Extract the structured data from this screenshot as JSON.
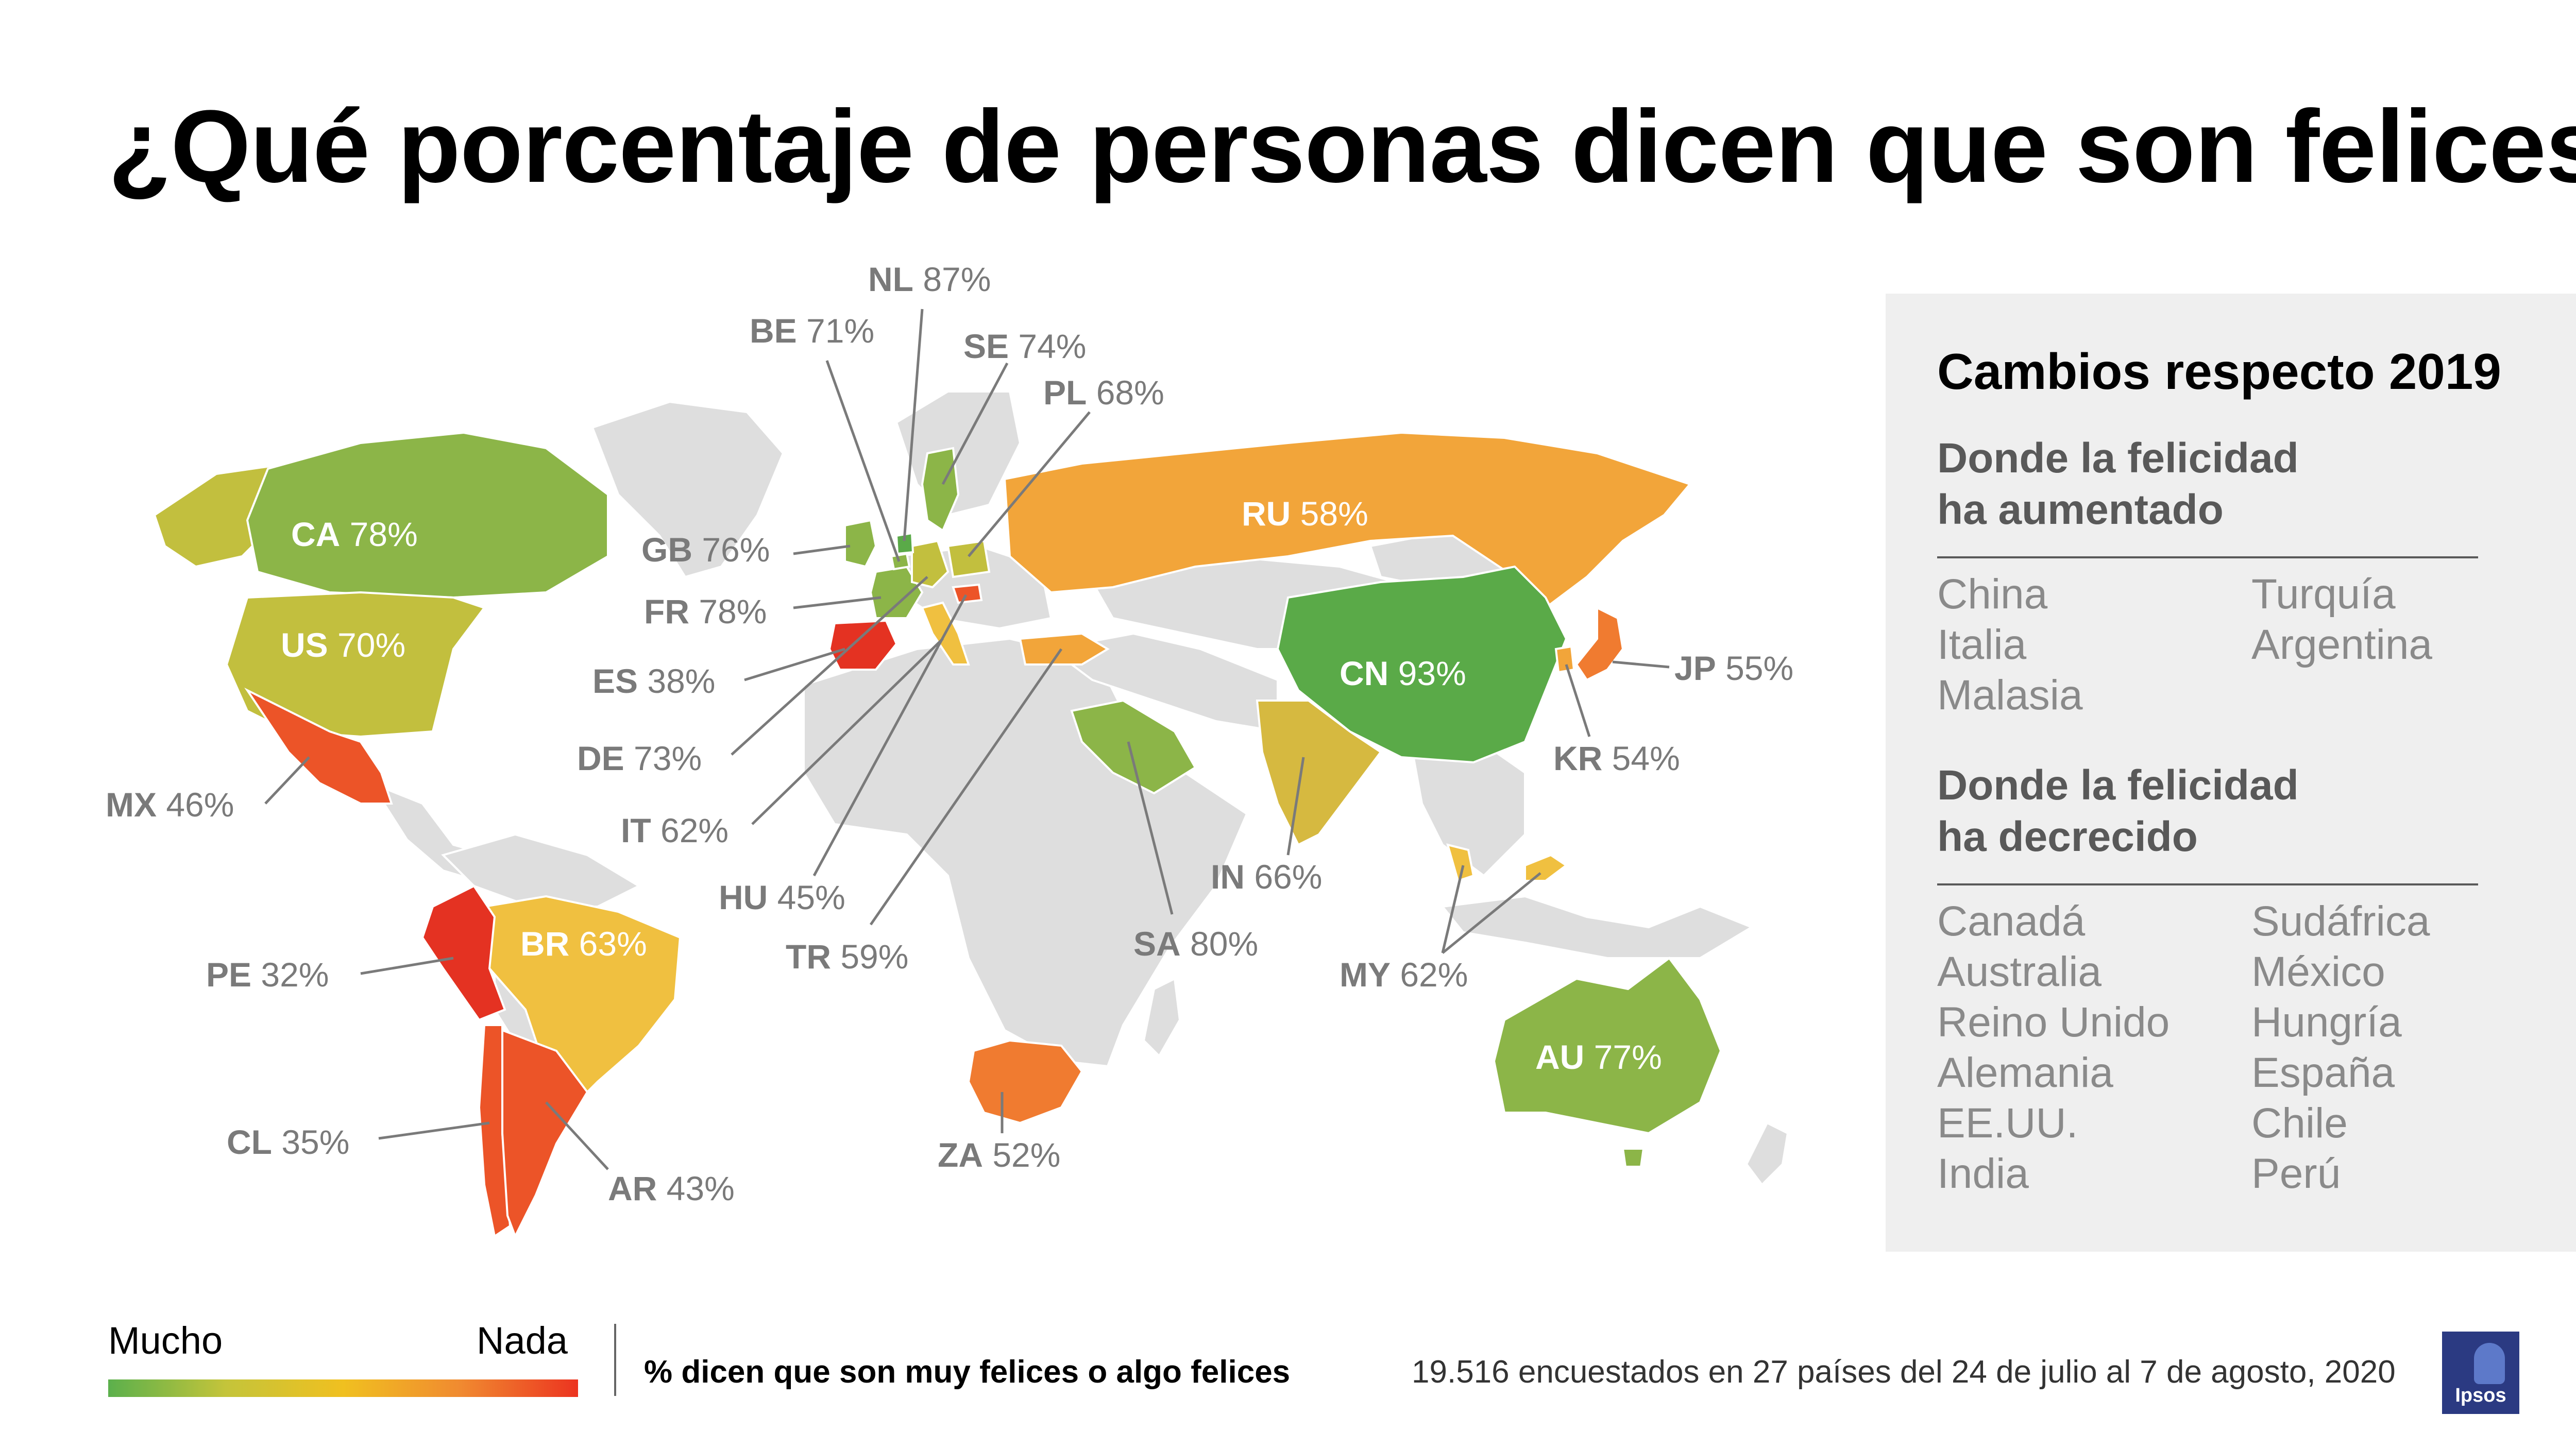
{
  "title": "¿Qué porcentaje de personas dicen que son felices?",
  "panel": {
    "title": "Cambios respecto 2019",
    "increased": {
      "title_line1": "Donde la felicidad",
      "title_line2": "ha aumentado",
      "col1": [
        "China",
        "Italia",
        "Malasia"
      ],
      "col2": [
        "Turquía",
        "Argentina"
      ]
    },
    "decreased": {
      "title_line1": "Donde la felicidad",
      "title_line2": "ha decrecido",
      "col1": [
        "Canadá",
        "Australia",
        "Reino Unido",
        "Alemania",
        "EE.UU.",
        "India"
      ],
      "col2": [
        "Sudáfrica",
        "México",
        "Hungría",
        "España",
        "Chile",
        "Perú"
      ]
    }
  },
  "legend": {
    "low_label": "Mucho",
    "high_label": "Nada",
    "description": "% dicen que son muy felices o algo felices",
    "scale_colors": [
      "#5bb04c",
      "#c4c43a",
      "#f0c020",
      "#f08a30",
      "#ec3420"
    ]
  },
  "footnote": "19.516 encuestados en 27 países del 24 de julio al 7 de agosto, 2020",
  "logo": "Ipsos",
  "colors": {
    "no_data": "#dedede",
    "green_high": "#5aaa48",
    "green": "#8cb548",
    "yellow_green": "#c2bf3e",
    "yellow": "#f0c040",
    "orange": "#f2a53a",
    "dark_orange": "#f07b30",
    "red_orange": "#ec5428",
    "red": "#e43222"
  },
  "countries": [
    {
      "code": "CA",
      "value": "78%"
    },
    {
      "code": "US",
      "value": "70%"
    },
    {
      "code": "MX",
      "value": "46%"
    },
    {
      "code": "BR",
      "value": "63%"
    },
    {
      "code": "PE",
      "value": "32%"
    },
    {
      "code": "CL",
      "value": "35%"
    },
    {
      "code": "AR",
      "value": "43%"
    },
    {
      "code": "GB",
      "value": "76%"
    },
    {
      "code": "FR",
      "value": "78%"
    },
    {
      "code": "ES",
      "value": "38%"
    },
    {
      "code": "DE",
      "value": "73%"
    },
    {
      "code": "IT",
      "value": "62%"
    },
    {
      "code": "HU",
      "value": "45%"
    },
    {
      "code": "TR",
      "value": "59%"
    },
    {
      "code": "BE",
      "value": "71%"
    },
    {
      "code": "NL",
      "value": "87%"
    },
    {
      "code": "SE",
      "value": "74%"
    },
    {
      "code": "PL",
      "value": "68%"
    },
    {
      "code": "RU",
      "value": "58%"
    },
    {
      "code": "CN",
      "value": "93%"
    },
    {
      "code": "JP",
      "value": "55%"
    },
    {
      "code": "KR",
      "value": "54%"
    },
    {
      "code": "IN",
      "value": "66%"
    },
    {
      "code": "SA",
      "value": "80%"
    },
    {
      "code": "MY",
      "value": "62%"
    },
    {
      "code": "ZA",
      "value": "52%"
    },
    {
      "code": "AU",
      "value": "77%"
    }
  ]
}
